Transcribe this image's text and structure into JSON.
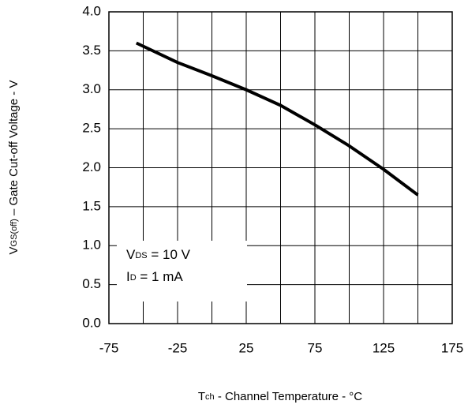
{
  "chart_data": {
    "type": "line",
    "x_label": [
      "T",
      "ch",
      " - Channel Temperature - °C"
    ],
    "y_label": [
      "V",
      "GS(off)",
      " – Gate Cut-off Voltage - V"
    ],
    "annotations": [
      [
        "V",
        "DS",
        " = 10 V"
      ],
      [
        "I",
        "D",
        " = 1 mA"
      ]
    ],
    "series": [
      {
        "color": "#000000",
        "x": [
          -55,
          -25,
          0,
          25,
          50,
          75,
          100,
          125,
          150
        ],
        "values": [
          3.6,
          3.35,
          3.18,
          3.0,
          2.8,
          2.55,
          2.28,
          1.98,
          1.65
        ]
      }
    ],
    "xlim": [
      -75,
      175
    ],
    "xticks": [
      -75,
      -25,
      25,
      75,
      125,
      175
    ],
    "xminor": [
      -50,
      0,
      50,
      100,
      150
    ],
    "ylim": [
      0,
      4
    ],
    "yticks": [
      {
        "value": 0,
        "label": "0.0"
      },
      0.5,
      {
        "value": 1,
        "label": "1.0"
      },
      1.5,
      {
        "value": 2,
        "label": "2.0"
      },
      2.5,
      {
        "value": 3,
        "label": "3.0"
      },
      3.5,
      {
        "value": 4,
        "label": "4.0"
      }
    ],
    "grid": true
  }
}
